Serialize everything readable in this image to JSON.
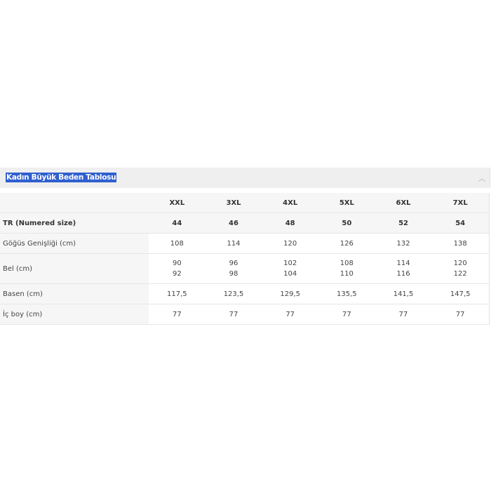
{
  "accordion": {
    "title": "Kadın Büyük Beden Tablosu",
    "icon": "chevron-up-icon"
  },
  "table": {
    "columns": [
      "",
      "XXL",
      "3XL",
      "4XL",
      "5XL",
      "6XL",
      "7XL"
    ],
    "rows": [
      {
        "label": "TR (Numered size)",
        "values": [
          "44",
          "46",
          "48",
          "50",
          "52",
          "54"
        ]
      },
      {
        "label": "Göğüs Genişliği (cm)",
        "values": [
          "108",
          "114",
          "120",
          "126",
          "132",
          "138"
        ]
      },
      {
        "label": "Bel (cm)",
        "values": [
          "90",
          "96",
          "102",
          "108",
          "114",
          "120"
        ],
        "values2": [
          "92",
          "98",
          "104",
          "110",
          "116",
          "122"
        ]
      },
      {
        "label": "Basen (cm)",
        "values": [
          "117,5",
          "123,5",
          "129,5",
          "135,5",
          "141,5",
          "147,5"
        ]
      },
      {
        "label": "İç boy (cm)",
        "values": [
          "77",
          "77",
          "77",
          "77",
          "77",
          "77"
        ]
      }
    ]
  }
}
